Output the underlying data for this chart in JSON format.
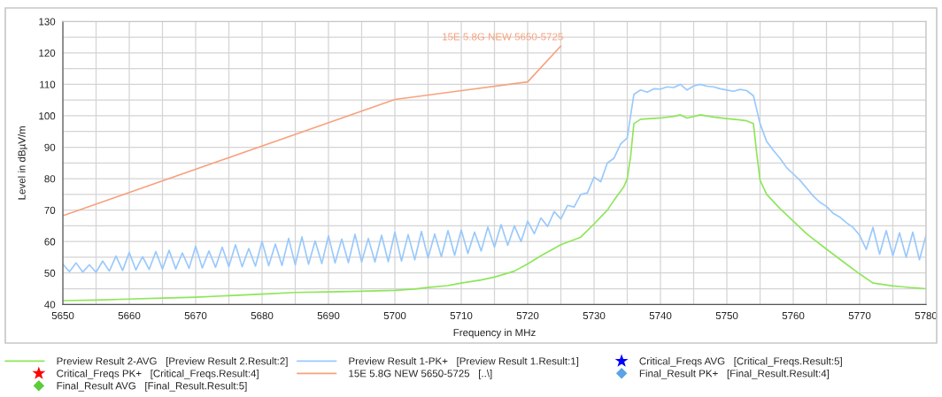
{
  "chart_data": {
    "type": "line",
    "xlabel": "Frequency in MHz",
    "ylabel": "Level in dBµV/m",
    "xlim": [
      5650,
      5780
    ],
    "xticks": [
      5650,
      {
        "value": 5655,
        "label": null
      },
      5660,
      {
        "value": 5665,
        "label": null
      },
      5670,
      {
        "value": 5675,
        "label": null
      },
      5680,
      {
        "value": 5685,
        "label": null
      },
      5690,
      {
        "value": 5695,
        "label": null
      },
      5700,
      {
        "value": 5705,
        "label": null
      },
      5710,
      {
        "value": 5715,
        "label": null
      },
      5720,
      {
        "value": 5725,
        "label": null
      },
      5730,
      {
        "value": 5735,
        "label": null
      },
      5740,
      {
        "value": 5745,
        "label": null
      },
      5750,
      {
        "value": 5755,
        "label": null
      },
      5760,
      {
        "value": 5765,
        "label": null
      },
      5770,
      {
        "value": 5775,
        "label": null
      },
      5780
    ],
    "ylim": [
      40,
      130
    ],
    "yticks": [
      40,
      {
        "value": 45,
        "label": null
      },
      50,
      {
        "value": 55,
        "label": null
      },
      60,
      {
        "value": 65,
        "label": null
      },
      70,
      {
        "value": 75,
        "label": null
      },
      80,
      {
        "value": 85,
        "label": null
      },
      90,
      {
        "value": 95,
        "label": null
      },
      100,
      {
        "value": 105,
        "label": null
      },
      110,
      {
        "value": 115,
        "label": null
      },
      120,
      {
        "value": 125,
        "label": null
      },
      130
    ],
    "grid": true,
    "legend": "bottom",
    "annotations": [
      {
        "text": "15E 5.8G NEW 5650-5725",
        "x": 5725,
        "y": 122.2
      }
    ],
    "series": [
      {
        "name": "Preview Result 2-AVG   [Preview Result 2.Result:2]",
        "color": "#8ee65a",
        "x": [
          5650,
          5655,
          5660,
          5665,
          5670,
          5675,
          5680,
          5685,
          5690,
          5695,
          5700,
          5703,
          5705,
          5708,
          5710,
          5713,
          5715,
          5718,
          5720,
          5722,
          5725,
          5728,
          5730,
          5732,
          5733,
          5734.5,
          5735,
          5735.5,
          5736,
          5737,
          5740,
          5742,
          5743,
          5744,
          5746,
          5748,
          5750,
          5752,
          5753,
          5754,
          5754.5,
          5755,
          5756,
          5758,
          5760,
          5762,
          5765,
          5768,
          5770,
          5772,
          5775,
          5778,
          5780
        ],
        "values": [
          41.2,
          41.4,
          41.7,
          42.0,
          42.3,
          42.8,
          43.3,
          43.8,
          44.0,
          44.2,
          44.5,
          44.9,
          45.4,
          46.0,
          46.8,
          47.8,
          48.7,
          50.6,
          52.9,
          55.5,
          59.0,
          61.4,
          65.6,
          70.0,
          73.1,
          77.5,
          80.0,
          87.0,
          97.5,
          98.9,
          99.3,
          99.8,
          100.3,
          99.3,
          100.3,
          99.6,
          99.1,
          98.7,
          98.4,
          97.5,
          88.0,
          79.5,
          75.0,
          70.5,
          66.5,
          62.5,
          57.6,
          52.8,
          49.7,
          46.8,
          45.9,
          45.3,
          45.0
        ]
      },
      {
        "name": "Preview Result 1-PK+   [Preview Result 1.Result:1]",
        "color": "#99c9fc",
        "x": [
          5650,
          5651,
          5652,
          5653,
          5654,
          5655,
          5656,
          5657,
          5658,
          5659,
          5660,
          5661,
          5662,
          5663,
          5664,
          5665,
          5666,
          5667,
          5668,
          5669,
          5670,
          5671,
          5672,
          5673,
          5674,
          5675,
          5676,
          5677,
          5678,
          5679,
          5680,
          5681,
          5682,
          5683,
          5684,
          5685,
          5686,
          5687,
          5688,
          5689,
          5690,
          5691,
          5692,
          5693,
          5694,
          5695,
          5696,
          5697,
          5698,
          5699,
          5700,
          5701,
          5702,
          5703,
          5704,
          5705,
          5706,
          5707,
          5708,
          5709,
          5710,
          5711,
          5712,
          5713,
          5714,
          5715,
          5716,
          5717,
          5718,
          5719,
          5720,
          5721,
          5722,
          5723,
          5724,
          5725,
          5726,
          5727,
          5728,
          5729,
          5730,
          5731,
          5732,
          5733,
          5734,
          5735,
          5735.5,
          5736,
          5737,
          5738,
          5739,
          5740,
          5741,
          5742,
          5743,
          5744,
          5745,
          5746,
          5747,
          5748,
          5749,
          5750,
          5751,
          5752,
          5753,
          5754,
          5755,
          5756,
          5757,
          5758,
          5759,
          5760,
          5761,
          5762,
          5763,
          5764,
          5765,
          5766,
          5767,
          5768,
          5769,
          5770,
          5771,
          5772,
          5773,
          5774,
          5775,
          5776,
          5777,
          5778,
          5779,
          5780
        ],
        "values": [
          52.8,
          50.4,
          53.2,
          50.3,
          52.6,
          50.2,
          53.8,
          50.6,
          55.4,
          50.8,
          56.5,
          51.0,
          55.2,
          51.1,
          56.8,
          51.2,
          57.2,
          51.3,
          56.4,
          51.5,
          58.5,
          51.6,
          57.0,
          51.8,
          58.2,
          52.0,
          59.0,
          52.0,
          57.8,
          52.2,
          60.0,
          52.3,
          59.2,
          52.4,
          61.0,
          52.6,
          61.5,
          52.8,
          60.2,
          53.0,
          61.8,
          53.2,
          60.8,
          53.3,
          62.3,
          53.5,
          61.0,
          53.5,
          62.0,
          53.6,
          63.0,
          53.8,
          62.2,
          54.2,
          63.2,
          54.8,
          62.4,
          55.2,
          63.5,
          55.6,
          63.7,
          56.2,
          63.0,
          57.0,
          64.6,
          58.2,
          65.4,
          58.8,
          65.0,
          60.0,
          66.5,
          62.5,
          67.5,
          64.8,
          69.5,
          67.2,
          71.5,
          71.0,
          75.0,
          75.5,
          80.5,
          79.0,
          85.0,
          86.5,
          91.0,
          93.0,
          100.0,
          106.8,
          108.2,
          107.5,
          108.6,
          108.5,
          109.2,
          109.0,
          110.0,
          108.2,
          109.5,
          110.0,
          109.4,
          109.2,
          108.6,
          108.2,
          107.8,
          108.4,
          108.0,
          106.4,
          97.5,
          91.8,
          89.0,
          86.5,
          83.5,
          81.5,
          79.5,
          77.0,
          74.5,
          72.5,
          71.2,
          69.0,
          67.8,
          66.0,
          64.5,
          62.0,
          57.5,
          64.5,
          56.0,
          63.5,
          55.5,
          62.8,
          55.0,
          63.0,
          54.2,
          62.0
        ]
      },
      {
        "type": "scatter",
        "marker": "star",
        "name": "Critical_Freqs AVG   [Critical_Freqs.Result:5]",
        "color": "#0000ff"
      },
      {
        "type": "scatter",
        "marker": "star",
        "name": "Critical_Freqs PK+   [Critical_Freqs.Result:4]",
        "color": "#ff0000"
      },
      {
        "name": "15E 5.8G NEW 5650-5725   [..\\]",
        "color": "#f7a27e",
        "x": [
          5650,
          5700,
          5720,
          5725
        ],
        "values": [
          68.2,
          105.2,
          110.8,
          122.2
        ]
      },
      {
        "type": "scatter",
        "marker": "diamond",
        "name": "Final_Result PK+   [Final_Result.Result:4]",
        "color": "#5ba3e6"
      },
      {
        "type": "scatter",
        "marker": "diamond",
        "name": "Final_Result AVG   [Final_Result.Result:5]",
        "color": "#5ccc3a"
      }
    ]
  }
}
